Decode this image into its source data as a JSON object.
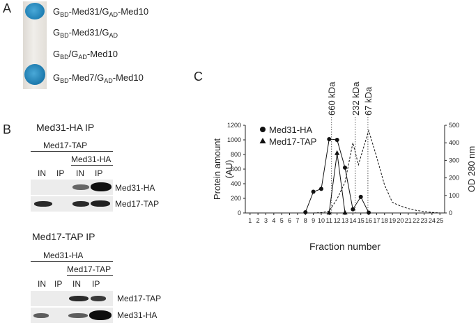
{
  "panel_a": {
    "letter": "A",
    "rows": [
      {
        "g1": "G",
        "s1": "BD",
        "m1": "-Med31/G",
        "s2": "AD",
        "m2": "-Med10",
        "growth": "blue"
      },
      {
        "g1": "G",
        "s1": "BD",
        "m1": "-Med31/G",
        "s2": "AD",
        "m2": "",
        "growth": "none"
      },
      {
        "g1": "G",
        "s1": "BD",
        "m1": "/G",
        "s2": "AD",
        "m2": "-Med10",
        "growth": "none"
      },
      {
        "g1": "G",
        "s1": "BD",
        "m1": "-Med7/G",
        "s2": "AD",
        "m2": "-Med10",
        "growth": "blue"
      }
    ],
    "colors": {
      "colony": "#2a8fc0",
      "strip": "#e9e7e3"
    }
  },
  "panel_b": {
    "letter": "B",
    "blocks": [
      {
        "title": "Med31-HA IP",
        "outer_label": "Med17-TAP",
        "inner_label": "Med31-HA",
        "lanes": [
          "IN",
          "IP",
          "IN",
          "IP"
        ],
        "blots": [
          {
            "label": "Med31-HA",
            "bands": [
              0,
              0,
              0.75,
              1.0
            ]
          },
          {
            "label": "Med17-TAP",
            "bands": [
              0.8,
              0,
              0.8,
              0.85
            ]
          }
        ]
      },
      {
        "title": "Med17-TAP IP",
        "outer_label": "Med31-HA",
        "inner_label": "Med17-TAP",
        "lanes": [
          "IN",
          "IP",
          "IN",
          "IP"
        ],
        "blots": [
          {
            "label": "Med17-TAP",
            "bands": [
              0,
              0,
              0.8,
              0.7
            ]
          },
          {
            "label": "Med31-HA",
            "bands": [
              0.6,
              0,
              0.6,
              1.0
            ]
          }
        ]
      }
    ]
  },
  "panel_c": {
    "letter": "C",
    "chart_data": {
      "type": "line",
      "xlabel": "Fraction number",
      "ylabel_left": [
        "Protein amount",
        "(AU)"
      ],
      "ylabel_right": "OD 280 nm",
      "x_ticks": [
        1,
        2,
        3,
        4,
        5,
        6,
        7,
        8,
        9,
        10,
        11,
        12,
        13,
        14,
        15,
        16,
        17,
        18,
        19,
        20,
        21,
        22,
        23,
        24,
        25
      ],
      "y_left_ticks": [
        0,
        200,
        400,
        600,
        800,
        1000,
        1200
      ],
      "y_right_ticks": [
        0,
        100,
        200,
        300,
        400,
        500
      ],
      "ylim_left": [
        0,
        1200
      ],
      "ylim_right": [
        0,
        500
      ],
      "markers": [
        {
          "label": "660 kDa",
          "x": 11.3
        },
        {
          "label": "232 kDa",
          "x": 14.3
        },
        {
          "label": "67 kDa",
          "x": 15.9
        }
      ],
      "series": [
        {
          "name": "Med31-HA",
          "marker": "circle",
          "axis": "left",
          "x": [
            8,
            9,
            10,
            11,
            12,
            13,
            14,
            15,
            16
          ],
          "y": [
            10,
            290,
            330,
            1010,
            1000,
            620,
            50,
            220,
            5
          ]
        },
        {
          "name": "Med17-TAP",
          "marker": "triangle",
          "axis": "left",
          "x": [
            11,
            12,
            13
          ],
          "y": [
            5,
            820,
            5
          ]
        },
        {
          "name": "OD280",
          "marker": "none",
          "axis": "right",
          "dashed": true,
          "x": [
            9,
            10,
            11,
            12,
            13,
            14,
            14.7,
            16,
            17,
            18,
            19,
            20,
            21,
            22,
            23,
            24,
            25
          ],
          "y": [
            0,
            2,
            10,
            80,
            175,
            400,
            275,
            470,
            320,
            160,
            60,
            40,
            25,
            15,
            8,
            3,
            0
          ]
        }
      ],
      "legend_position": "top-left"
    }
  }
}
